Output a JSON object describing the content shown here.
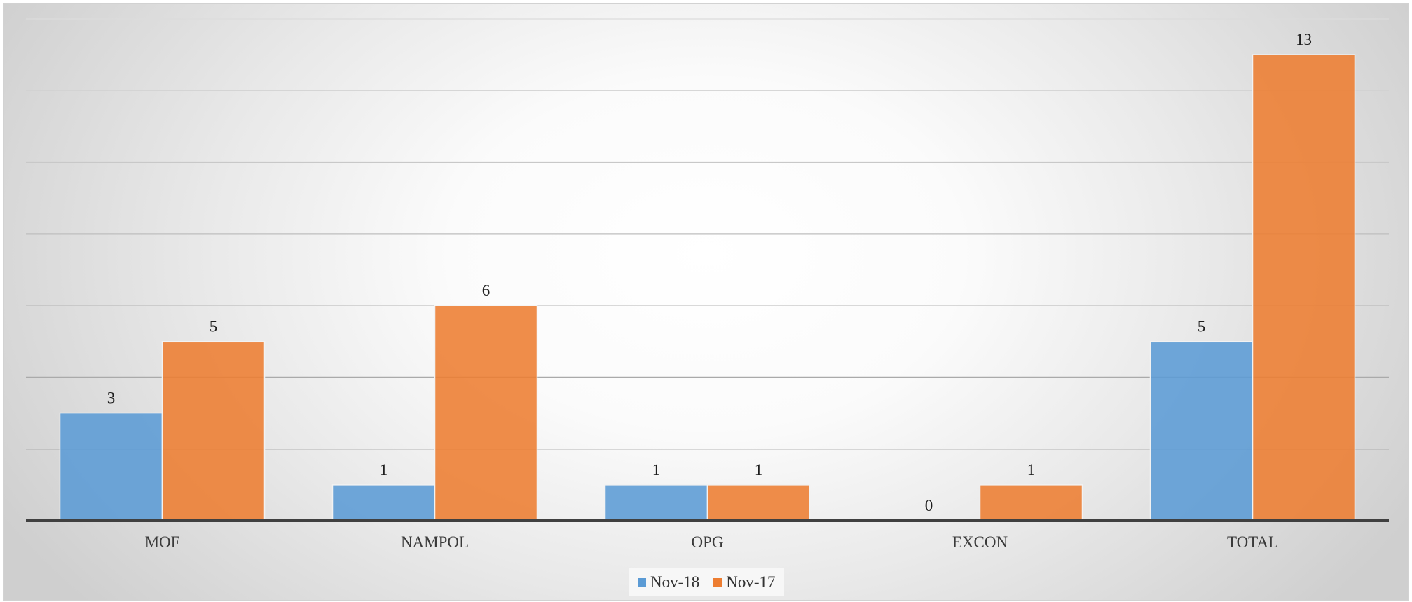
{
  "chart_data": {
    "type": "bar",
    "title": "",
    "xlabel": "",
    "ylabel": "",
    "categories": [
      "MOF",
      "NAMPOL",
      "OPG",
      "EXCON",
      "TOTAL"
    ],
    "series": [
      {
        "name": "Nov-18",
        "values": [
          3,
          1,
          1,
          0,
          5
        ],
        "color": "#5b9bd5"
      },
      {
        "name": "Nov-17",
        "values": [
          5,
          6,
          1,
          1,
          13
        ],
        "color": "#ed7d31"
      }
    ],
    "ylim": [
      0,
      14
    ],
    "grid": true,
    "legend": "bottom-center",
    "data_labels": true
  }
}
